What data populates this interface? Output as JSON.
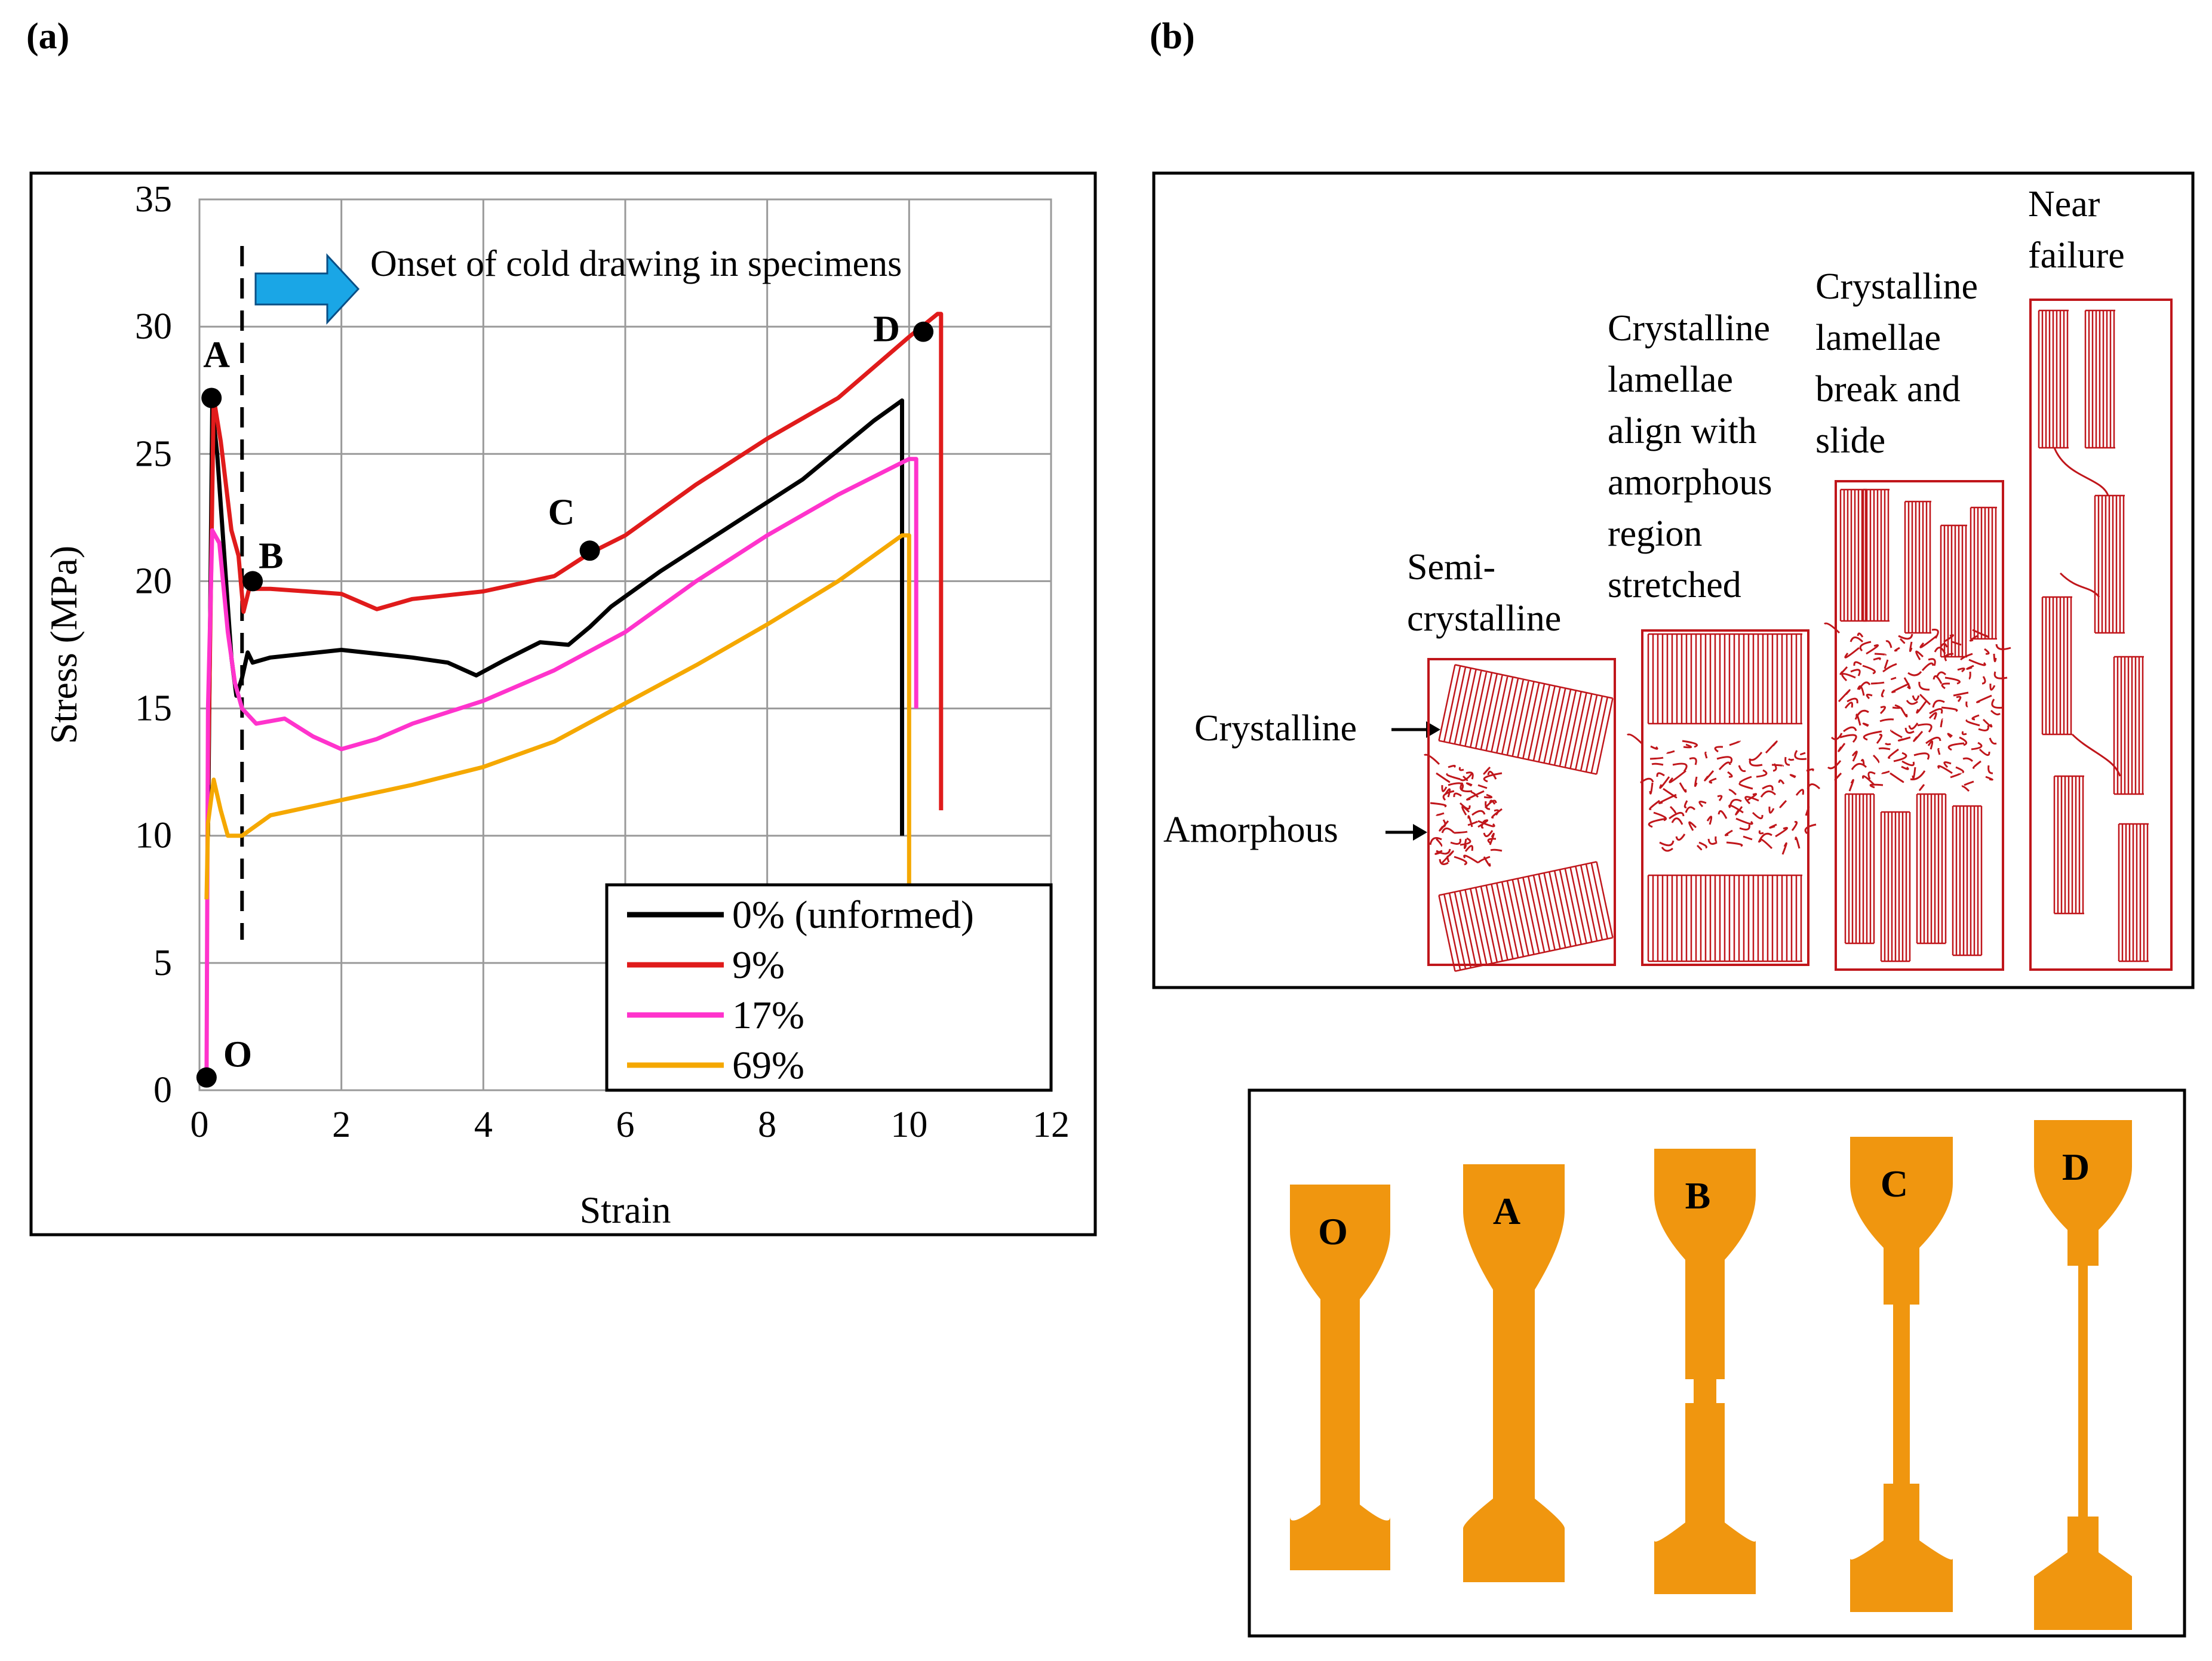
{
  "panel_labels": {
    "a": "(a)",
    "b": "(b)"
  },
  "chart_data": {
    "type": "line",
    "xlabel": "Strain",
    "ylabel": "Stress (MPa)",
    "xlim": [
      0,
      12
    ],
    "ylim": [
      0,
      35
    ],
    "xticks": [
      0,
      2,
      4,
      6,
      8,
      10,
      12
    ],
    "yticks": [
      0,
      5,
      10,
      15,
      20,
      25,
      30,
      35
    ],
    "grid": true,
    "legend_position": "bottom-right",
    "annotation": "Onset of cold drawing in specimens",
    "cold_drawing_strain": 0.6,
    "series": [
      {
        "name": "0% (unformed)",
        "color": "#000000",
        "points": [
          [
            0.12,
            10
          ],
          [
            0.18,
            26.8
          ],
          [
            0.25,
            25
          ],
          [
            0.35,
            21
          ],
          [
            0.45,
            17
          ],
          [
            0.52,
            15.5
          ],
          [
            0.6,
            16.2
          ],
          [
            0.68,
            17.2
          ],
          [
            0.75,
            16.8
          ],
          [
            1,
            17
          ],
          [
            2,
            17.3
          ],
          [
            3,
            17
          ],
          [
            3.5,
            16.8
          ],
          [
            3.9,
            16.3
          ],
          [
            4.3,
            16.9
          ],
          [
            4.8,
            17.6
          ],
          [
            5.2,
            17.5
          ],
          [
            5.5,
            18.2
          ],
          [
            5.8,
            19
          ],
          [
            6.5,
            20.4
          ],
          [
            7.5,
            22.2
          ],
          [
            8.5,
            24
          ],
          [
            9.5,
            26.3
          ],
          [
            9.9,
            27.1
          ],
          [
            9.9,
            10
          ]
        ]
      },
      {
        "name": "9%",
        "color": "#e01b1b",
        "points": [
          [
            0.12,
            12
          ],
          [
            0.2,
            27.2
          ],
          [
            0.3,
            25.5
          ],
          [
            0.45,
            22
          ],
          [
            0.55,
            21
          ],
          [
            0.62,
            18.8
          ],
          [
            0.7,
            19.7
          ],
          [
            1,
            19.7
          ],
          [
            2,
            19.5
          ],
          [
            2.5,
            18.9
          ],
          [
            3,
            19.3
          ],
          [
            4,
            19.6
          ],
          [
            5,
            20.2
          ],
          [
            5.5,
            21.1
          ],
          [
            6,
            21.8
          ],
          [
            7,
            23.8
          ],
          [
            8,
            25.6
          ],
          [
            9,
            27.2
          ],
          [
            10,
            29.6
          ],
          [
            10.4,
            30.5
          ],
          [
            10.45,
            30.5
          ],
          [
            10.45,
            11
          ]
        ]
      },
      {
        "name": "17%",
        "color": "#ff33cc",
        "points": [
          [
            0.1,
            0.5
          ],
          [
            0.12,
            15
          ],
          [
            0.18,
            22
          ],
          [
            0.28,
            21.5
          ],
          [
            0.4,
            18
          ],
          [
            0.5,
            16
          ],
          [
            0.6,
            15
          ],
          [
            0.8,
            14.4
          ],
          [
            1.2,
            14.6
          ],
          [
            1.6,
            13.9
          ],
          [
            2,
            13.4
          ],
          [
            2.5,
            13.8
          ],
          [
            3,
            14.4
          ],
          [
            4,
            15.3
          ],
          [
            5,
            16.5
          ],
          [
            6,
            18
          ],
          [
            7,
            20
          ],
          [
            8,
            21.8
          ],
          [
            9,
            23.4
          ],
          [
            10,
            24.8
          ],
          [
            10.1,
            24.8
          ],
          [
            10.1,
            15
          ]
        ]
      },
      {
        "name": "69%",
        "color": "#f5a800",
        "points": [
          [
            0.1,
            7.5
          ],
          [
            0.12,
            10.5
          ],
          [
            0.2,
            12.2
          ],
          [
            0.3,
            11
          ],
          [
            0.4,
            10
          ],
          [
            0.6,
            10
          ],
          [
            1,
            10.8
          ],
          [
            2,
            11.4
          ],
          [
            3,
            12
          ],
          [
            4,
            12.7
          ],
          [
            5,
            13.7
          ],
          [
            6,
            15.2
          ],
          [
            7,
            16.7
          ],
          [
            8,
            18.3
          ],
          [
            9,
            20
          ],
          [
            9.9,
            21.8
          ],
          [
            10,
            21.8
          ],
          [
            10,
            8
          ]
        ]
      }
    ],
    "marked_points": [
      {
        "label": "O",
        "x": 0.1,
        "y": 0.5
      },
      {
        "label": "A",
        "x": 0.17,
        "y": 27.2
      },
      {
        "label": "B",
        "x": 0.75,
        "y": 20
      },
      {
        "label": "C",
        "x": 5.5,
        "y": 21.2
      },
      {
        "label": "D",
        "x": 10.2,
        "y": 29.8
      }
    ]
  },
  "diagram": {
    "stages": [
      "Semi-\ncrystalline",
      "Crystalline\nlamellae\nalign with\namorphous\nregion\nstretched",
      "Crystalline\nlamellae\nbreak and\nslide",
      "Near\nfailure"
    ],
    "structure_labels": [
      "Crystalline",
      "Amorphous"
    ]
  },
  "specimens": {
    "labels": [
      "O",
      "A",
      "B",
      "C",
      "D"
    ],
    "color": "#f0960f"
  }
}
